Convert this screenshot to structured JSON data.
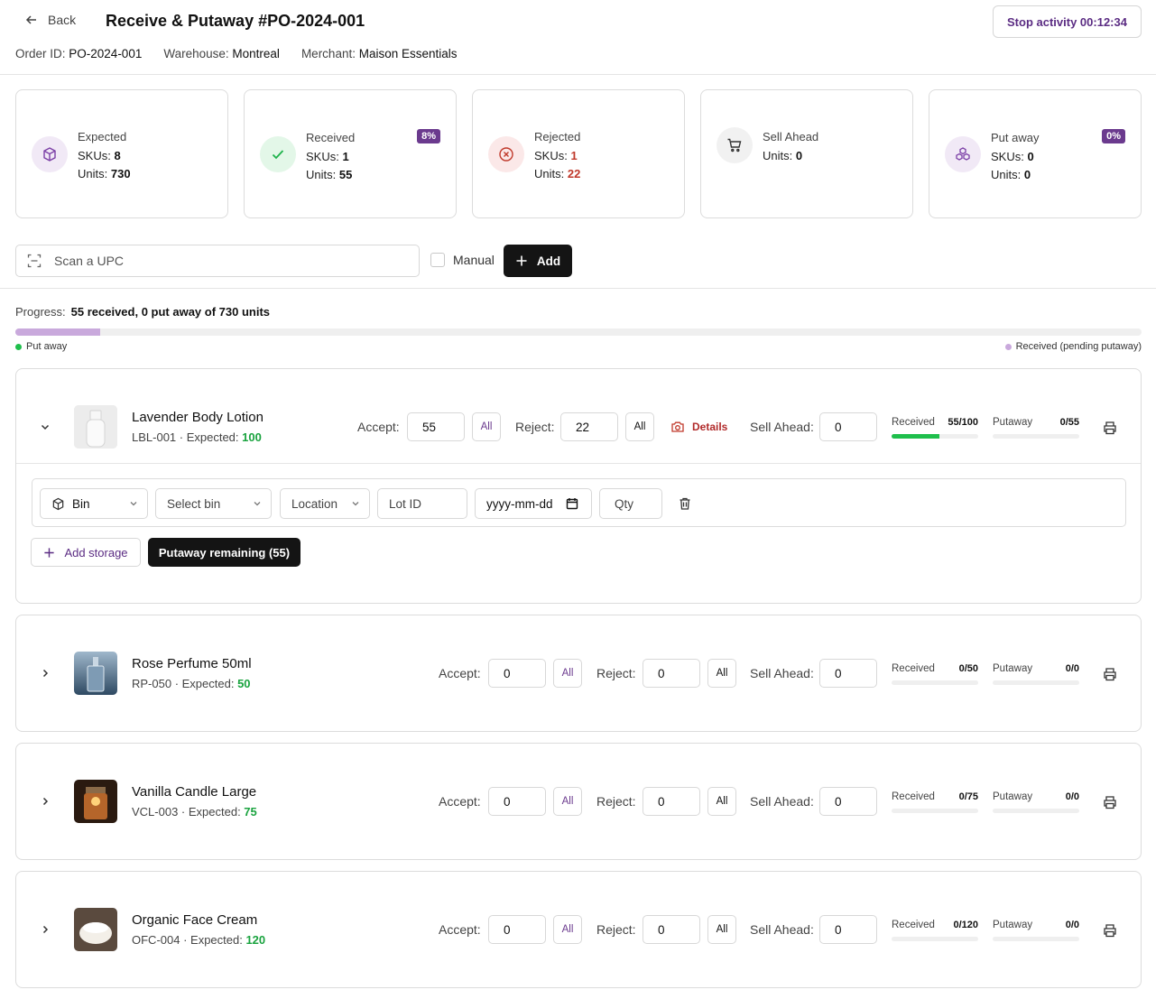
{
  "header": {
    "back_label": "Back",
    "title": "Receive & Putaway #PO-2024-001",
    "order_label": "Order ID:",
    "order_value": "PO-2024-001",
    "warehouse_label": "Warehouse:",
    "warehouse_value": "Montreal",
    "merchant_label": "Merchant:",
    "merchant_value": "Maison Essentials",
    "stop_label": "Stop activity 00:12:34"
  },
  "cards": {
    "expected": {
      "title": "Expected",
      "skus_label": "SKUs:",
      "skus": "8",
      "units_label": "Units:",
      "units": "730",
      "icon": "package-icon"
    },
    "received": {
      "title": "Received",
      "skus_label": "SKUs:",
      "skus": "1",
      "units_label": "Units:",
      "units": "55",
      "badge": "8%",
      "icon": "check-icon"
    },
    "rejected": {
      "title": "Rejected",
      "skus_label": "SKUs:",
      "skus": "1",
      "units_label": "Units:",
      "units": "22",
      "icon": "x-circle-icon"
    },
    "sell_ahead": {
      "title": "Sell Ahead",
      "units_label": "Units:",
      "units": "0",
      "icon": "cart-icon"
    },
    "put_away": {
      "title": "Put away",
      "skus_label": "SKUs:",
      "skus": "0",
      "units_label": "Units:",
      "units": "0",
      "badge": "0%",
      "icon": "boxes-icon"
    }
  },
  "scan": {
    "placeholder": "Scan a UPC",
    "manual_label": "Manual",
    "add_label": "Add"
  },
  "progress": {
    "label": "Progress:",
    "summary": "55 received, 0 put away of 730 units",
    "received_fraction": 0.075,
    "putaway_fraction": 0,
    "legend_putaway": "Put away",
    "legend_received": "Received (pending putaway)",
    "colors": {
      "putaway": "#1fbf4c",
      "received": "#c9a9dc"
    }
  },
  "labels": {
    "accept": "Accept:",
    "reject": "Reject:",
    "all": "All",
    "sell_ahead": "Sell Ahead:",
    "received": "Received",
    "putaway": "Putaway",
    "details": "Details",
    "expected_sep": " · Expected: "
  },
  "items": [
    {
      "name": "Lavender Body Lotion",
      "sku": "LBL-001",
      "expected": "100",
      "accept": "55",
      "reject": "22",
      "sell_ahead": "0",
      "received": "55/100",
      "received_fraction": 0.55,
      "putaway": "0/55",
      "putaway_fraction": 0,
      "expanded": true
    },
    {
      "name": "Rose Perfume 50ml",
      "sku": "RP-050",
      "expected": "50",
      "accept": "0",
      "reject": "0",
      "sell_ahead": "0",
      "received": "0/50",
      "received_fraction": 0,
      "putaway": "0/0",
      "putaway_fraction": 0
    },
    {
      "name": "Vanilla Candle Large",
      "sku": "VCL-003",
      "expected": "75",
      "accept": "0",
      "reject": "0",
      "sell_ahead": "0",
      "received": "0/75",
      "received_fraction": 0,
      "putaway": "0/0",
      "putaway_fraction": 0
    },
    {
      "name": "Organic Face Cream",
      "sku": "OFC-004",
      "expected": "120",
      "accept": "0",
      "reject": "0",
      "sell_ahead": "0",
      "received": "0/120",
      "received_fraction": 0,
      "putaway": "0/0",
      "putaway_fraction": 0
    }
  ],
  "storage": {
    "type_value": "Bin",
    "bin_placeholder": "Select bin",
    "location_placeholder": "Location",
    "lot_placeholder": "Lot ID",
    "date_placeholder": "yyyy-mm-dd",
    "qty_placeholder": "Qty",
    "add_storage_label": "Add storage",
    "putaway_remaining_label": "Putaway remaining (55)"
  }
}
